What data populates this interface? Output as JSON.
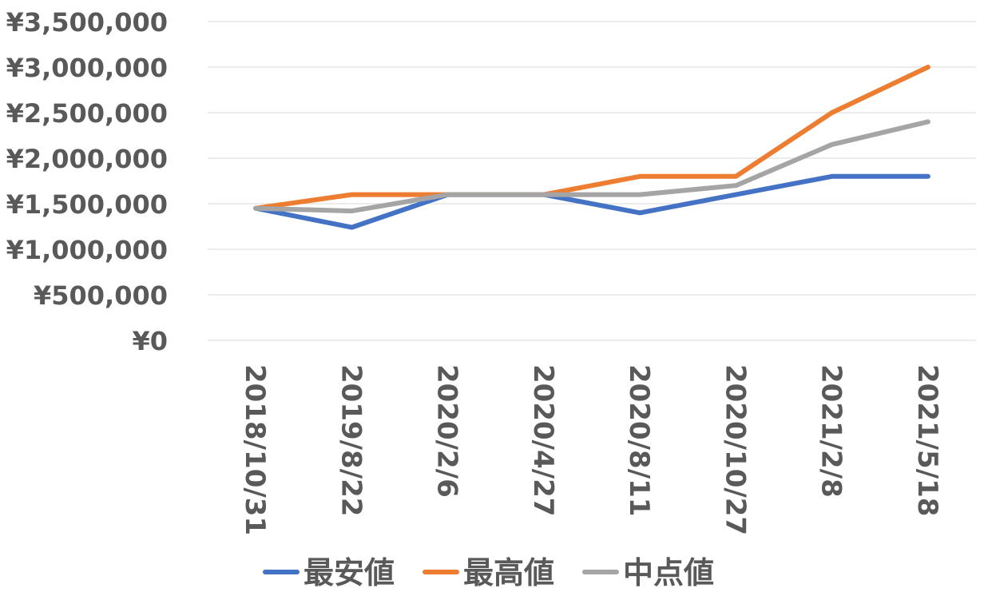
{
  "chart_data": {
    "type": "line",
    "title": "",
    "xlabel": "",
    "ylabel": "",
    "categories": [
      "2018/10/31",
      "2019/8/22",
      "2020/2/6",
      "2020/4/27",
      "2020/8/11",
      "2020/10/27",
      "2021/2/8",
      "2021/5/18"
    ],
    "y_ticks": [
      0,
      500000,
      1000000,
      1500000,
      2000000,
      2500000,
      3000000,
      3500000
    ],
    "y_tick_labels": [
      "¥0",
      "¥500,000",
      "¥1,000,000",
      "¥1,500,000",
      "¥2,000,000",
      "¥2,500,000",
      "¥3,000,000",
      "¥3,500,000"
    ],
    "ylim": [
      0,
      3500000
    ],
    "grid": true,
    "legend_position": "bottom",
    "series": [
      {
        "name": "最安値",
        "color": "#4472c4",
        "values": [
          1450000,
          1240000,
          1600000,
          1600000,
          1400000,
          1600000,
          1800000,
          1800000
        ]
      },
      {
        "name": "最高値",
        "color": "#ed7d31",
        "values": [
          1450000,
          1600000,
          1600000,
          1600000,
          1800000,
          1800000,
          2500000,
          3000000
        ]
      },
      {
        "name": "中点値",
        "color": "#a5a5a5",
        "values": [
          1450000,
          1420000,
          1600000,
          1600000,
          1600000,
          1700000,
          2150000,
          2400000
        ]
      }
    ]
  }
}
